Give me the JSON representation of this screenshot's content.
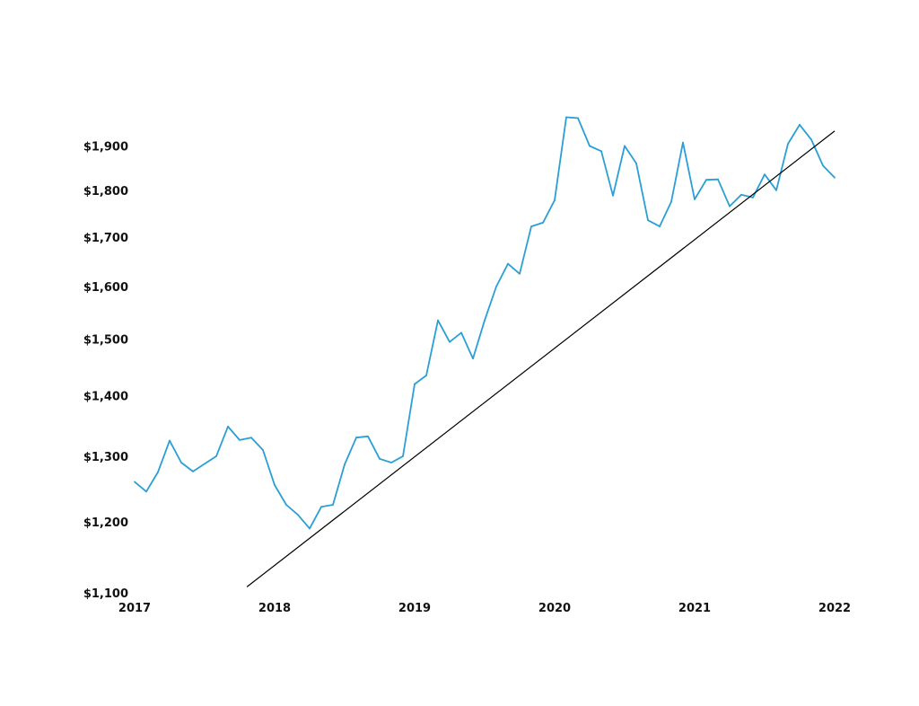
{
  "chart_data": {
    "type": "line",
    "title": "",
    "xlabel": "",
    "ylabel": "",
    "log_scale_y": true,
    "grid": false,
    "legend": "none",
    "xlim": [
      "2017-01",
      "2022-01"
    ],
    "ylim": [
      1100,
      1980
    ],
    "x_ticks": [
      "2017",
      "2018",
      "2019",
      "2020",
      "2021",
      "2022"
    ],
    "y_ticks": [
      "$1,100",
      "$1,200",
      "$1,300",
      "$1,400",
      "$1,500",
      "$1,600",
      "$1,700",
      "$1,800",
      "$1,900"
    ],
    "y_tick_values": [
      1100,
      1200,
      1300,
      1400,
      1500,
      1600,
      1700,
      1800,
      1900
    ],
    "series": [
      {
        "color": "#2a9fd6",
        "x": [
          "2017-01",
          "2017-02",
          "2017-03",
          "2017-04",
          "2017-05",
          "2017-06",
          "2017-07",
          "2017-08",
          "2017-09",
          "2017-10",
          "2017-11",
          "2017-12",
          "2018-01",
          "2018-02",
          "2018-03",
          "2018-04",
          "2018-05",
          "2018-06",
          "2018-07",
          "2018-08",
          "2018-09",
          "2018-10",
          "2018-11",
          "2018-12",
          "2019-01",
          "2019-02",
          "2019-03",
          "2019-04",
          "2019-05",
          "2019-06",
          "2019-07",
          "2019-08",
          "2019-09",
          "2019-10",
          "2019-11",
          "2019-12",
          "2020-01",
          "2020-02",
          "2020-03",
          "2020-04",
          "2020-05",
          "2020-06",
          "2020-07",
          "2020-08",
          "2020-09",
          "2020-10",
          "2020-11",
          "2020-12",
          "2021-01",
          "2021-02",
          "2021-03",
          "2021-04",
          "2021-05",
          "2021-06",
          "2021-07",
          "2021-08",
          "2021-09",
          "2021-10",
          "2021-11",
          "2021-12",
          "2022-01"
        ],
        "values": [
          1260,
          1245,
          1275,
          1325,
          1290,
          1276,
          1288,
          1300,
          1348,
          1326,
          1330,
          1310,
          1255,
          1225,
          1210,
          1190,
          1222,
          1225,
          1287,
          1330,
          1332,
          1296,
          1290,
          1300,
          1420,
          1435,
          1535,
          1495,
          1512,
          1465,
          1535,
          1600,
          1645,
          1625,
          1722,
          1730,
          1778,
          1968,
          1966,
          1900,
          1888,
          1788,
          1900,
          1860,
          1735,
          1722,
          1775,
          1908,
          1780,
          1823,
          1824,
          1765,
          1790,
          1784,
          1835,
          1800,
          1905,
          1950,
          1915,
          1855,
          1828
        ]
      },
      {
        "name": "",
        "color": "#000000",
        "type": "trendline",
        "x": [
          "2017-10-20",
          "2022-01"
        ],
        "values": [
          1108,
          1935
        ]
      }
    ]
  }
}
